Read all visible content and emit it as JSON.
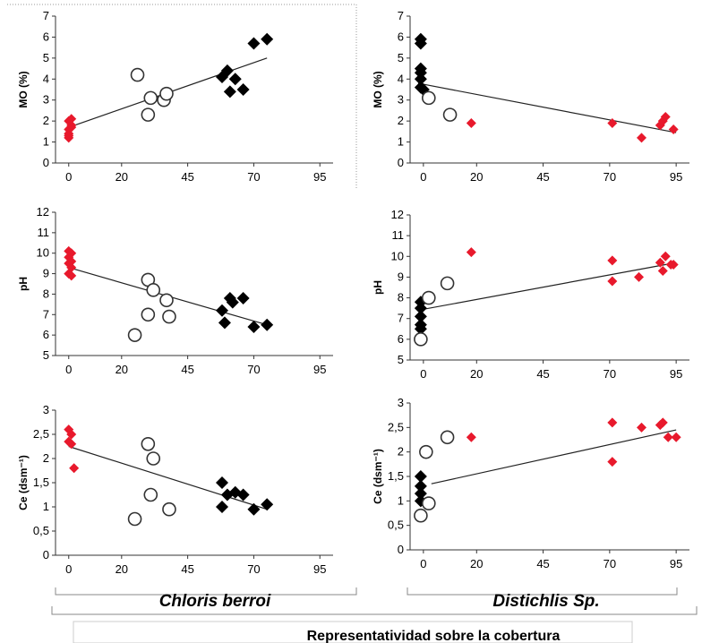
{
  "figure": {
    "x_axis_title": "Representatividad sobre la cobertura",
    "species_labels": [
      "Chloris berroi",
      "Distichlis Sp."
    ]
  },
  "colors": {
    "red": "#e8192c",
    "black": "#000000",
    "hollow": "#333333"
  },
  "chart_data": [
    {
      "type": "scatter",
      "name": "chloris-mo",
      "ylabel": "MO (%)",
      "ylim": [
        0,
        7
      ],
      "yticks": [
        "0",
        "1",
        "2",
        "3",
        "4",
        "5",
        "6",
        "7"
      ],
      "xlim": [
        -5,
        100
      ],
      "xticks": [
        "0",
        "20",
        "45",
        "70",
        "95"
      ],
      "trend": [
        [
          0,
          1.7
        ],
        [
          75,
          5.0
        ]
      ],
      "series": [
        {
          "marker": "red-diamond",
          "points": [
            [
              0,
              1.2
            ],
            [
              0,
              1.4
            ],
            [
              0,
              1.6
            ],
            [
              1,
              1.7
            ],
            [
              1,
              1.8
            ],
            [
              0,
              2.0
            ],
            [
              1,
              2.1
            ],
            [
              0,
              1.3
            ]
          ]
        },
        {
          "marker": "hollow-circle",
          "points": [
            [
              26,
              4.2
            ],
            [
              30,
              2.3
            ],
            [
              31,
              3.1
            ],
            [
              36,
              3.0
            ],
            [
              37,
              3.3
            ]
          ]
        },
        {
          "marker": "black-diamond",
          "points": [
            [
              58,
              4.1
            ],
            [
              60,
              4.4
            ],
            [
              61,
              3.4
            ],
            [
              63,
              4.0
            ],
            [
              66,
              3.5
            ],
            [
              70,
              5.7
            ],
            [
              75,
              5.9
            ]
          ]
        }
      ]
    },
    {
      "type": "scatter",
      "name": "distichlis-mo",
      "ylabel": "MO (%)",
      "ylim": [
        0,
        7
      ],
      "yticks": [
        "0",
        "1",
        "2",
        "3",
        "4",
        "5",
        "6",
        "7"
      ],
      "xlim": [
        -5,
        100
      ],
      "xticks": [
        "0",
        "20",
        "45",
        "70",
        "95"
      ],
      "trend": [
        [
          -2,
          3.8
        ],
        [
          95,
          1.45
        ]
      ],
      "series": [
        {
          "marker": "black-diamond",
          "points": [
            [
              -1,
              5.9
            ],
            [
              -1,
              5.7
            ],
            [
              -1,
              4.5
            ],
            [
              -1,
              4.3
            ],
            [
              -1,
              4.0
            ],
            [
              -1,
              3.6
            ],
            [
              0,
              3.5
            ]
          ]
        },
        {
          "marker": "hollow-circle",
          "points": [
            [
              2,
              3.1
            ],
            [
              10,
              2.3
            ]
          ]
        },
        {
          "marker": "red-diamond",
          "points": [
            [
              18,
              1.9
            ],
            [
              71,
              1.9
            ],
            [
              82,
              1.2
            ],
            [
              89,
              1.8
            ],
            [
              90,
              2.0
            ],
            [
              91,
              2.2
            ],
            [
              94,
              1.6
            ]
          ]
        }
      ]
    },
    {
      "type": "scatter",
      "name": "chloris-ph",
      "ylabel": "pH",
      "ylim": [
        5,
        12
      ],
      "yticks": [
        "5",
        "6",
        "7",
        "8",
        "9",
        "10",
        "11",
        "12"
      ],
      "xlim": [
        -5,
        100
      ],
      "xticks": [
        "0",
        "20",
        "45",
        "70",
        "95"
      ],
      "trend": [
        [
          0,
          9.3
        ],
        [
          75,
          6.5
        ]
      ],
      "series": [
        {
          "marker": "red-diamond",
          "points": [
            [
              0,
              10.1
            ],
            [
              1,
              10.0
            ],
            [
              0,
              9.8
            ],
            [
              1,
              9.6
            ],
            [
              0,
              9.5
            ],
            [
              1,
              9.3
            ],
            [
              0,
              9.0
            ],
            [
              1,
              8.9
            ]
          ]
        },
        {
          "marker": "hollow-circle",
          "points": [
            [
              25,
              6.0
            ],
            [
              30,
              8.7
            ],
            [
              30,
              7.0
            ],
            [
              32,
              8.2
            ],
            [
              37,
              7.7
            ],
            [
              38,
              6.9
            ]
          ]
        },
        {
          "marker": "black-diamond",
          "points": [
            [
              58,
              7.2
            ],
            [
              59,
              6.6
            ],
            [
              61,
              7.8
            ],
            [
              62,
              7.6
            ],
            [
              66,
              7.8
            ],
            [
              70,
              6.4
            ],
            [
              75,
              6.5
            ]
          ]
        }
      ]
    },
    {
      "type": "scatter",
      "name": "distichlis-ph",
      "ylabel": "pH",
      "ylim": [
        5,
        12
      ],
      "yticks": [
        "5",
        "6",
        "7",
        "8",
        "9",
        "10",
        "11",
        "12"
      ],
      "xlim": [
        -5,
        100
      ],
      "xticks": [
        "0",
        "20",
        "45",
        "70",
        "95"
      ],
      "trend": [
        [
          -2,
          7.4
        ],
        [
          95,
          9.7
        ]
      ],
      "series": [
        {
          "marker": "black-diamond",
          "points": [
            [
              -1,
              7.8
            ],
            [
              -1,
              7.5
            ],
            [
              -1,
              7.1
            ],
            [
              -1,
              6.7
            ],
            [
              -1,
              6.5
            ]
          ]
        },
        {
          "marker": "hollow-circle",
          "points": [
            [
              -1,
              6.0
            ],
            [
              2,
              8.0
            ],
            [
              9,
              8.7
            ]
          ]
        },
        {
          "marker": "red-diamond",
          "points": [
            [
              18,
              10.2
            ],
            [
              71,
              9.8
            ],
            [
              71,
              8.8
            ],
            [
              81,
              9.0
            ],
            [
              89,
              9.7
            ],
            [
              90,
              9.3
            ],
            [
              91,
              10.0
            ],
            [
              93,
              9.6
            ],
            [
              94,
              9.6
            ]
          ]
        }
      ]
    },
    {
      "type": "scatter",
      "name": "chloris-ce",
      "ylabel": "Ce (dsm⁻¹)",
      "ylim": [
        0,
        3
      ],
      "yticks": [
        "0",
        "0,5",
        "1",
        "1,5",
        "2",
        "2,5",
        "3"
      ],
      "xlim": [
        -5,
        100
      ],
      "xticks": [
        "0",
        "20",
        "45",
        "70",
        "95"
      ],
      "trend": [
        [
          0,
          2.25
        ],
        [
          75,
          0.95
        ]
      ],
      "series": [
        {
          "marker": "red-diamond",
          "points": [
            [
              0,
              2.6
            ],
            [
              1,
              2.5
            ],
            [
              0,
              2.35
            ],
            [
              1,
              2.3
            ],
            [
              2,
              1.8
            ]
          ]
        },
        {
          "marker": "hollow-circle",
          "points": [
            [
              25,
              0.75
            ],
            [
              30,
              2.3
            ],
            [
              31,
              1.25
            ],
            [
              32,
              2.0
            ],
            [
              38,
              0.95
            ]
          ]
        },
        {
          "marker": "black-diamond",
          "points": [
            [
              58,
              1.5
            ],
            [
              58,
              1.0
            ],
            [
              60,
              1.25
            ],
            [
              63,
              1.3
            ],
            [
              66,
              1.25
            ],
            [
              70,
              0.95
            ],
            [
              75,
              1.05
            ]
          ]
        }
      ]
    },
    {
      "type": "scatter",
      "name": "distichlis-ce",
      "ylabel": "Ce (dsm⁻¹)",
      "ylim": [
        0,
        3
      ],
      "yticks": [
        "0",
        "0,5",
        "1",
        "1,5",
        "2",
        "2,5",
        "3"
      ],
      "xlim": [
        -5,
        100
      ],
      "xticks": [
        "0",
        "20",
        "45",
        "70",
        "95"
      ],
      "trend": [
        [
          3,
          1.35
        ],
        [
          95,
          2.45
        ]
      ],
      "series": [
        {
          "marker": "black-diamond",
          "points": [
            [
              -1,
              1.5
            ],
            [
              -1,
              1.3
            ],
            [
              -1,
              1.15
            ],
            [
              -1,
              1.0
            ]
          ]
        },
        {
          "marker": "hollow-circle",
          "points": [
            [
              -1,
              0.7
            ],
            [
              1,
              2.0
            ],
            [
              2,
              0.95
            ],
            [
              9,
              2.3
            ]
          ]
        },
        {
          "marker": "red-diamond",
          "points": [
            [
              18,
              2.3
            ],
            [
              71,
              2.6
            ],
            [
              71,
              1.8
            ],
            [
              82,
              2.5
            ],
            [
              89,
              2.55
            ],
            [
              90,
              2.6
            ],
            [
              92,
              2.3
            ],
            [
              95,
              2.3
            ]
          ]
        }
      ]
    }
  ]
}
